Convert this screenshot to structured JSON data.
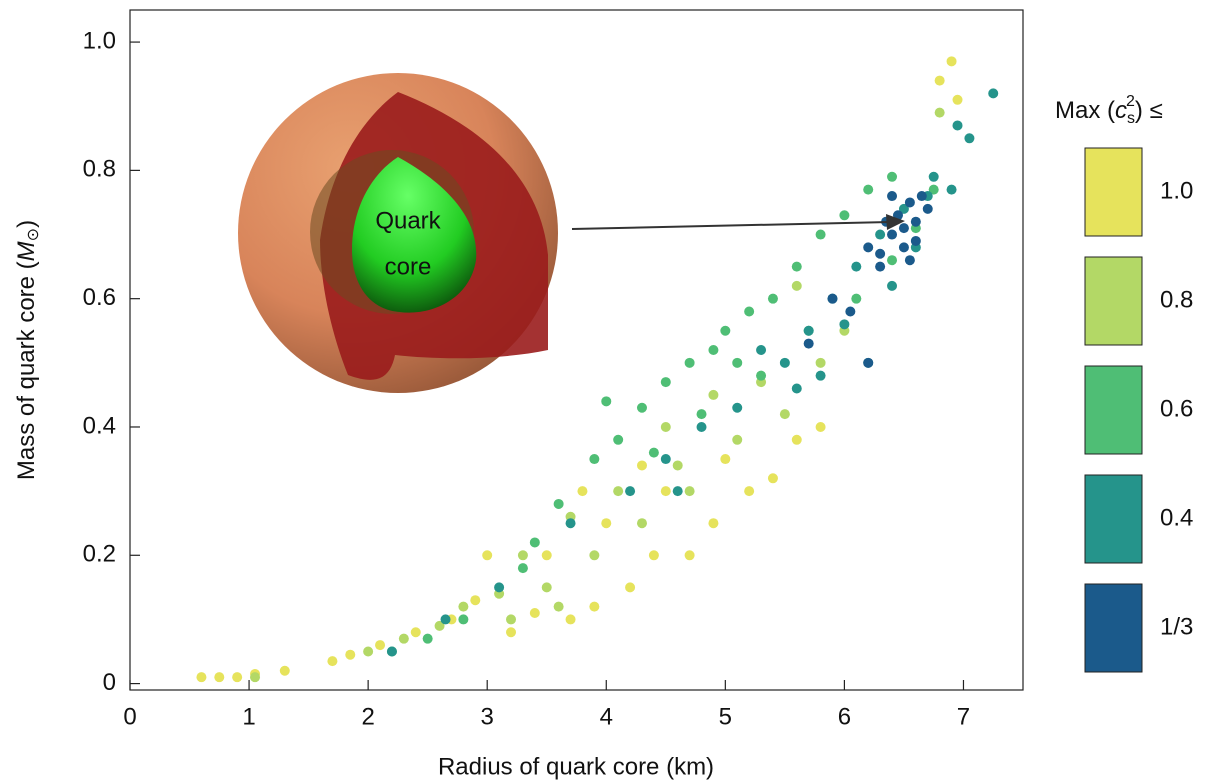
{
  "chart_data": {
    "type": "scatter",
    "x_label": "Radius of quark core (km)",
    "y_label": {
      "prefix": "Mass of quark core (",
      "symbol": "M",
      "sub": "⊙",
      "suffix": ")"
    },
    "legend_title": {
      "prefix": "Max (",
      "symbol": "c",
      "sub": "s",
      "sup": "2",
      "suffix": ") ≤"
    },
    "annotation": [
      "Quark",
      "core"
    ],
    "xlim": [
      0,
      7.5
    ],
    "ylim": [
      -0.01,
      1.05
    ],
    "xticks": [
      0,
      1,
      2,
      3,
      4,
      5,
      6,
      7
    ],
    "yticks": [
      0,
      0.2,
      0.4,
      0.6,
      0.8,
      {
        "value": 1,
        "label": "1.0"
      }
    ],
    "series": [
      {
        "name": "1.0",
        "color": "#e6e35c",
        "x": [
          0.6,
          0.75,
          0.9,
          1.05,
          1.3,
          1.7,
          1.85,
          2.1,
          2.4,
          2.7,
          2.9,
          3.2,
          3.4,
          3.5,
          3.7,
          3.9,
          4.0,
          4.2,
          4.4,
          4.5,
          4.7,
          4.9,
          5.0,
          5.2,
          5.4,
          5.6,
          5.8,
          3.0,
          4.3,
          6.9,
          6.95,
          6.8,
          3.8
        ],
        "values": [
          0.01,
          0.01,
          0.01,
          0.015,
          0.02,
          0.035,
          0.045,
          0.06,
          0.08,
          0.1,
          0.13,
          0.08,
          0.11,
          0.2,
          0.1,
          0.12,
          0.25,
          0.15,
          0.2,
          0.3,
          0.2,
          0.25,
          0.35,
          0.3,
          0.32,
          0.38,
          0.4,
          0.2,
          0.34,
          0.97,
          0.91,
          0.94,
          0.3
        ]
      },
      {
        "name": "0.8",
        "color": "#b3d866",
        "x": [
          1.05,
          2.0,
          2.3,
          2.6,
          3.1,
          3.3,
          3.5,
          3.7,
          3.9,
          4.1,
          4.3,
          4.5,
          4.7,
          4.9,
          5.1,
          5.3,
          5.5,
          5.8,
          6.0,
          3.2,
          3.6,
          4.6,
          6.8,
          2.8,
          5.6
        ],
        "values": [
          0.01,
          0.05,
          0.07,
          0.09,
          0.14,
          0.2,
          0.15,
          0.26,
          0.2,
          0.3,
          0.25,
          0.4,
          0.3,
          0.45,
          0.38,
          0.47,
          0.42,
          0.5,
          0.55,
          0.1,
          0.12,
          0.34,
          0.89,
          0.12,
          0.62
        ]
      },
      {
        "name": "0.6",
        "color": "#4fbe75",
        "x": [
          2.2,
          2.5,
          2.8,
          3.3,
          3.6,
          3.9,
          4.1,
          4.3,
          4.5,
          4.7,
          4.9,
          5.0,
          5.2,
          5.4,
          5.6,
          5.8,
          6.0,
          6.2,
          6.4,
          4.4,
          4.8,
          5.3,
          5.7,
          6.1,
          6.4,
          6.6,
          6.75,
          3.4,
          5.1,
          4.0
        ],
        "values": [
          0.05,
          0.07,
          0.1,
          0.18,
          0.28,
          0.35,
          0.38,
          0.43,
          0.47,
          0.5,
          0.52,
          0.55,
          0.58,
          0.6,
          0.65,
          0.7,
          0.73,
          0.77,
          0.79,
          0.36,
          0.42,
          0.48,
          0.55,
          0.6,
          0.66,
          0.71,
          0.77,
          0.22,
          0.5,
          0.44
        ]
      },
      {
        "name": "0.4",
        "color": "#25948b",
        "x": [
          2.2,
          2.65,
          3.1,
          3.7,
          4.2,
          4.5,
          4.8,
          5.1,
          5.5,
          5.7,
          5.9,
          6.1,
          6.3,
          6.5,
          6.7,
          6.9,
          6.95,
          7.05,
          7.25,
          6.2,
          6.4,
          5.8,
          5.3,
          6.0,
          6.6,
          5.6,
          6.75,
          4.6
        ],
        "values": [
          0.05,
          0.1,
          0.15,
          0.25,
          0.3,
          0.35,
          0.4,
          0.43,
          0.5,
          0.55,
          0.6,
          0.65,
          0.7,
          0.74,
          0.76,
          0.77,
          0.87,
          0.85,
          0.92,
          0.5,
          0.62,
          0.48,
          0.52,
          0.56,
          0.68,
          0.46,
          0.79,
          0.3
        ]
      },
      {
        "name": "1/3",
        "color": "#1b5a8b",
        "x": [
          6.3,
          6.4,
          6.45,
          6.5,
          6.55,
          6.6,
          6.65,
          6.5,
          6.35,
          6.6,
          6.3,
          6.2,
          6.7,
          6.4,
          6.55,
          5.9,
          6.2,
          6.05,
          5.7
        ],
        "values": [
          0.67,
          0.7,
          0.73,
          0.71,
          0.75,
          0.72,
          0.76,
          0.68,
          0.72,
          0.69,
          0.65,
          0.68,
          0.74,
          0.76,
          0.66,
          0.6,
          0.5,
          0.58,
          0.53
        ]
      }
    ]
  }
}
